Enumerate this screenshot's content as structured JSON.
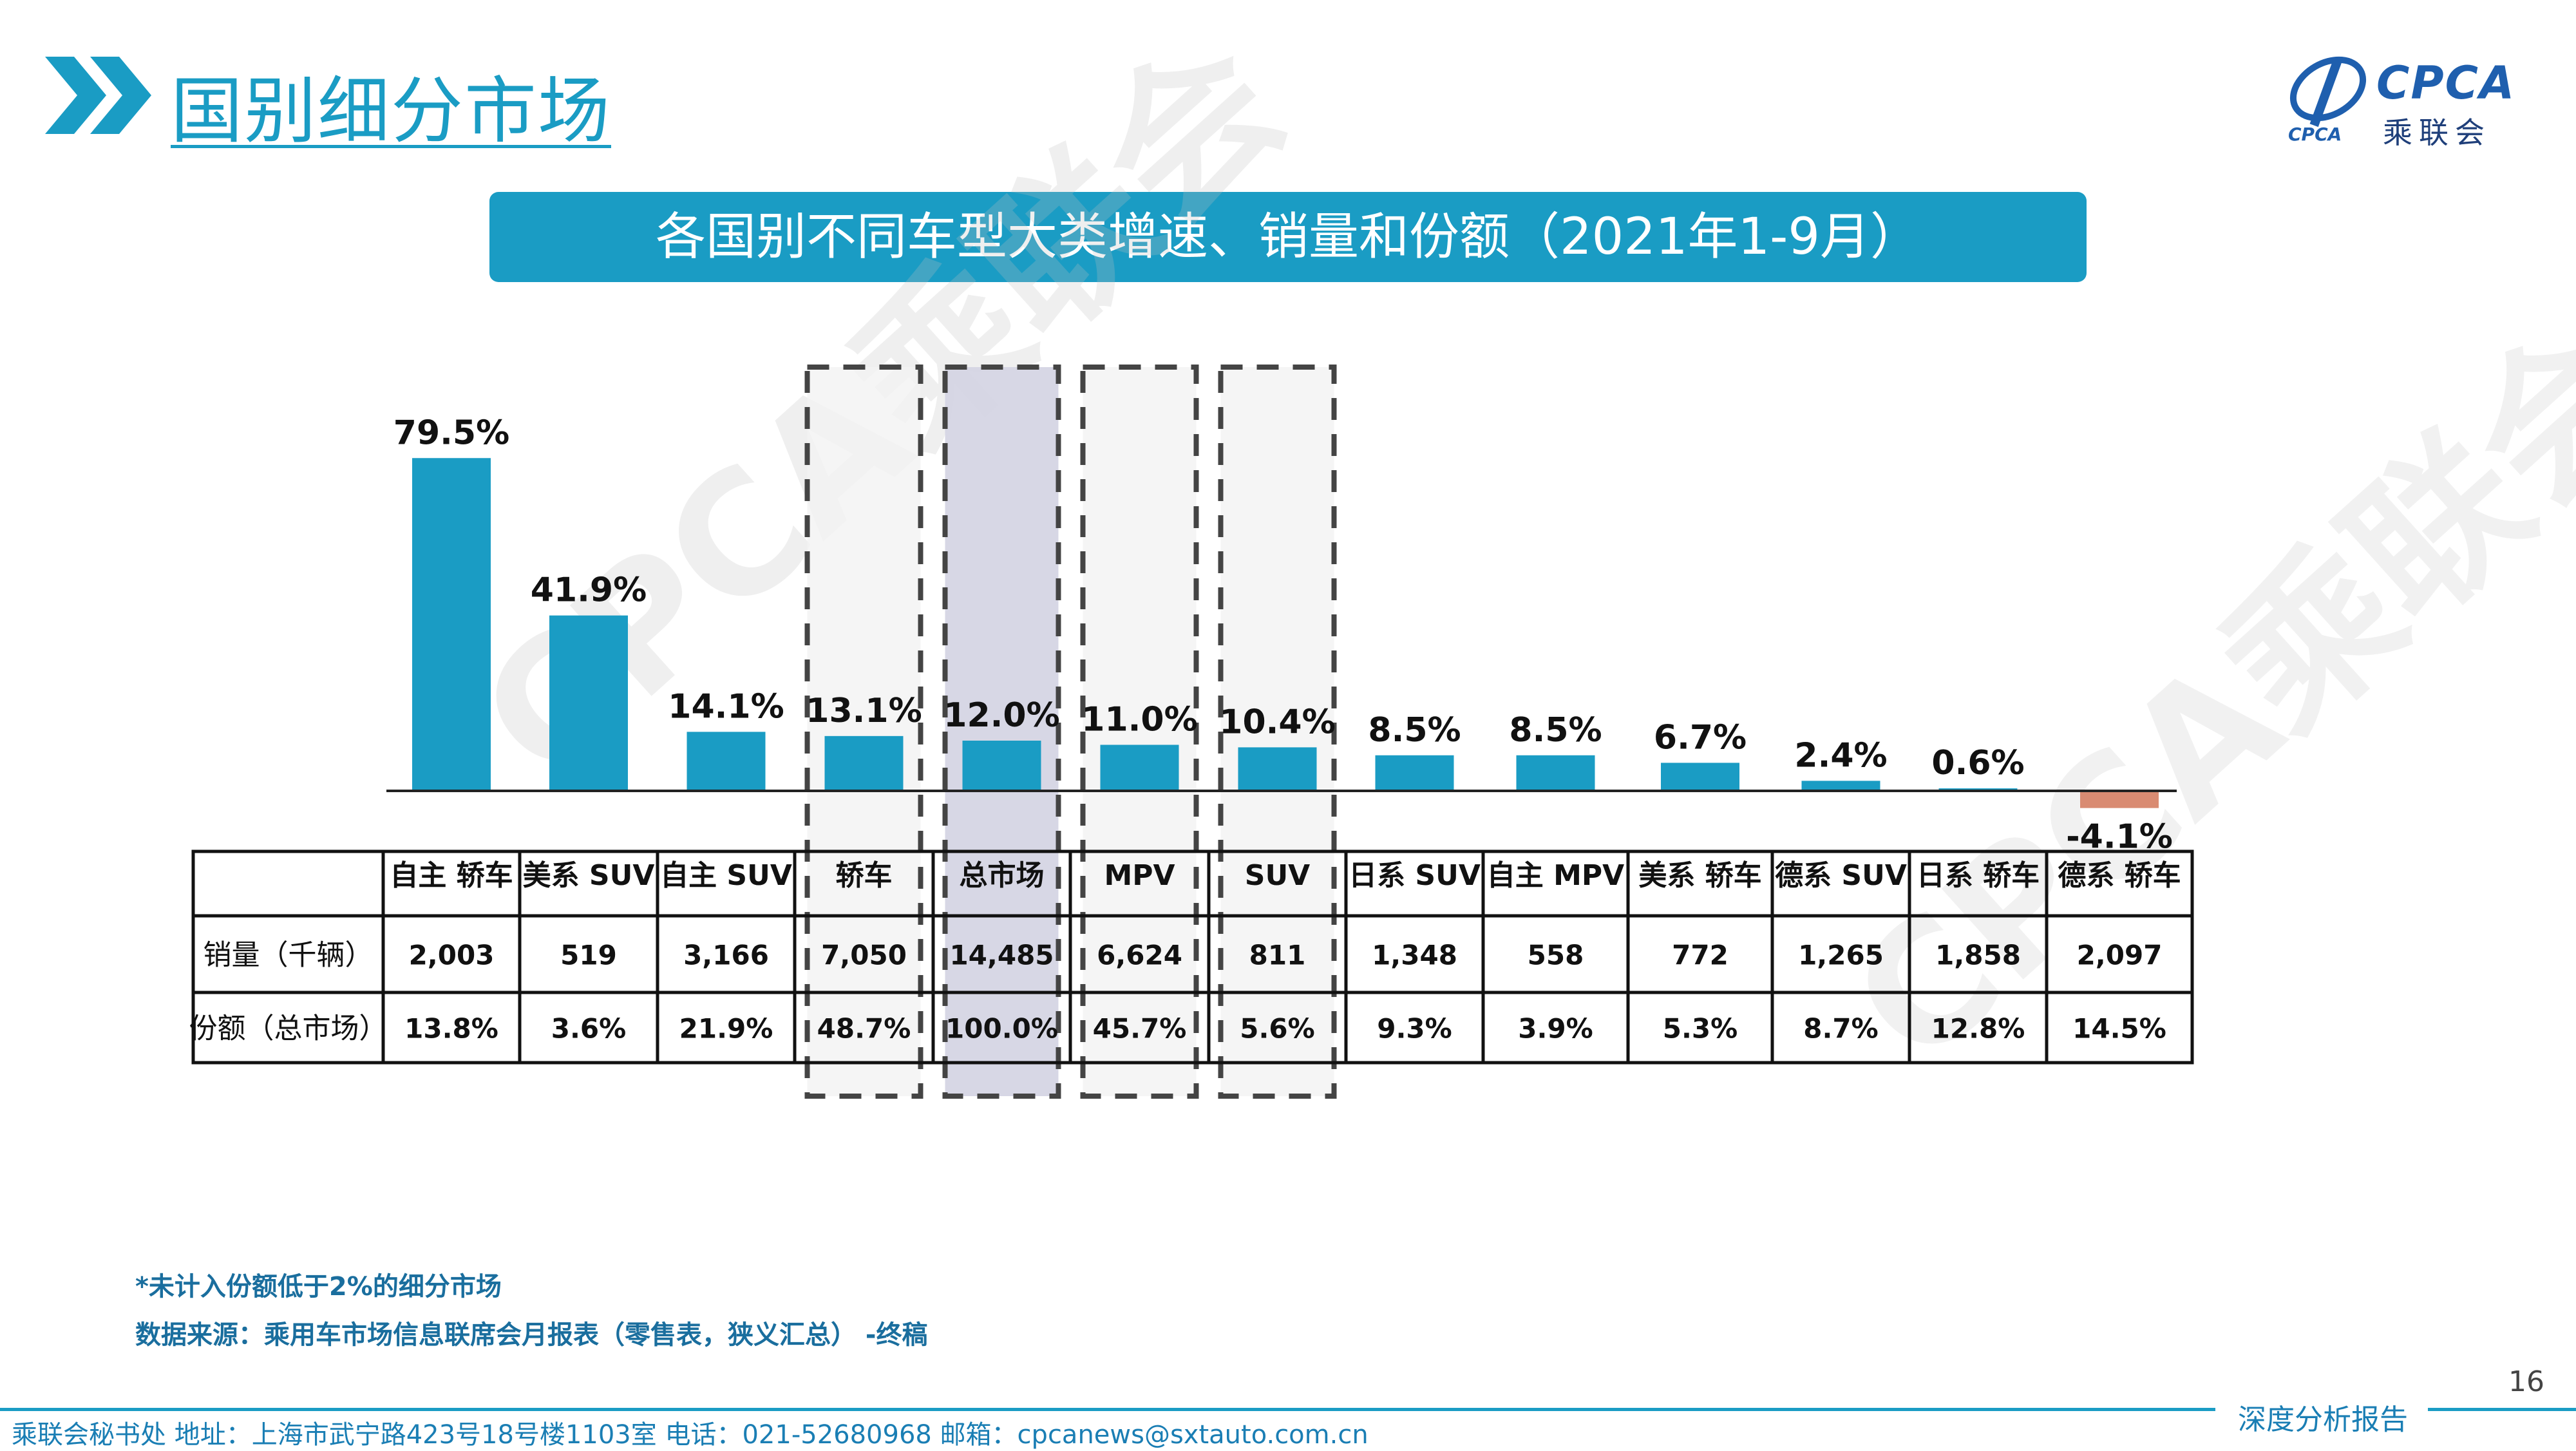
{
  "header": {
    "title": "国别细分市场",
    "logo_text": "CPCA",
    "logo_sub": "乘联会",
    "logo_small": "CPCA"
  },
  "banner": {
    "title": "各国别不同车型大类增速、销量和份额（2021年1-9月）"
  },
  "watermark": "CPCA乘联会",
  "colors": {
    "accent": "#1a9cc4",
    "negative": "#d98b72",
    "highlight": "#d3d3e2"
  },
  "chart_data": {
    "type": "bar",
    "categories": [
      "自主 轿车",
      "美系 SUV",
      "自主 SUV",
      "轿车",
      "总市场",
      "MPV",
      "SUV",
      "日系 SUV",
      "自主 MPV",
      "美系 轿车",
      "德系 SUV",
      "日系 轿车",
      "德系 轿车"
    ],
    "values": [
      79.5,
      41.9,
      14.1,
      13.1,
      12.0,
      11.0,
      10.4,
      8.5,
      8.5,
      6.7,
      2.4,
      0.6,
      -4.1
    ],
    "value_labels": [
      "79.5%",
      "41.9%",
      "14.1%",
      "13.1%",
      "12.0%",
      "11.0%",
      "10.4%",
      "8.5%",
      "8.5%",
      "6.7%",
      "2.4%",
      "0.6%",
      "-4.1%"
    ],
    "unit": "%",
    "ylim": [
      -8,
      90
    ],
    "highlighted": [
      "轿车",
      "总市场",
      "MPV",
      "SUV"
    ],
    "table": {
      "row_labels": [
        "销量（千辆）",
        "份额（总市场）"
      ],
      "sales": [
        "2,003",
        "519",
        "3,166",
        "7,050",
        "14,485",
        "6,624",
        "811",
        "1,348",
        "558",
        "772",
        "1,265",
        "1,858",
        "2,097"
      ],
      "share": [
        "13.8%",
        "3.6%",
        "21.9%",
        "48.7%",
        "100.0%",
        "45.7%",
        "5.6%",
        "9.3%",
        "3.9%",
        "5.3%",
        "8.7%",
        "12.8%",
        "14.5%"
      ]
    }
  },
  "notes": {
    "line1": "*未计入份额低于2%的细分市场",
    "line2": "数据来源：乘用车市场信息联席会月报表（零售表，狭义汇总） -终稿"
  },
  "page_number": "16",
  "footer": {
    "contact": "乘联会秘书处   地址：上海市武宁路423号18号楼1103室  电话：021-52680968   邮箱：cpcanews@sxtauto.com.cn",
    "right": "深度分析报告"
  }
}
